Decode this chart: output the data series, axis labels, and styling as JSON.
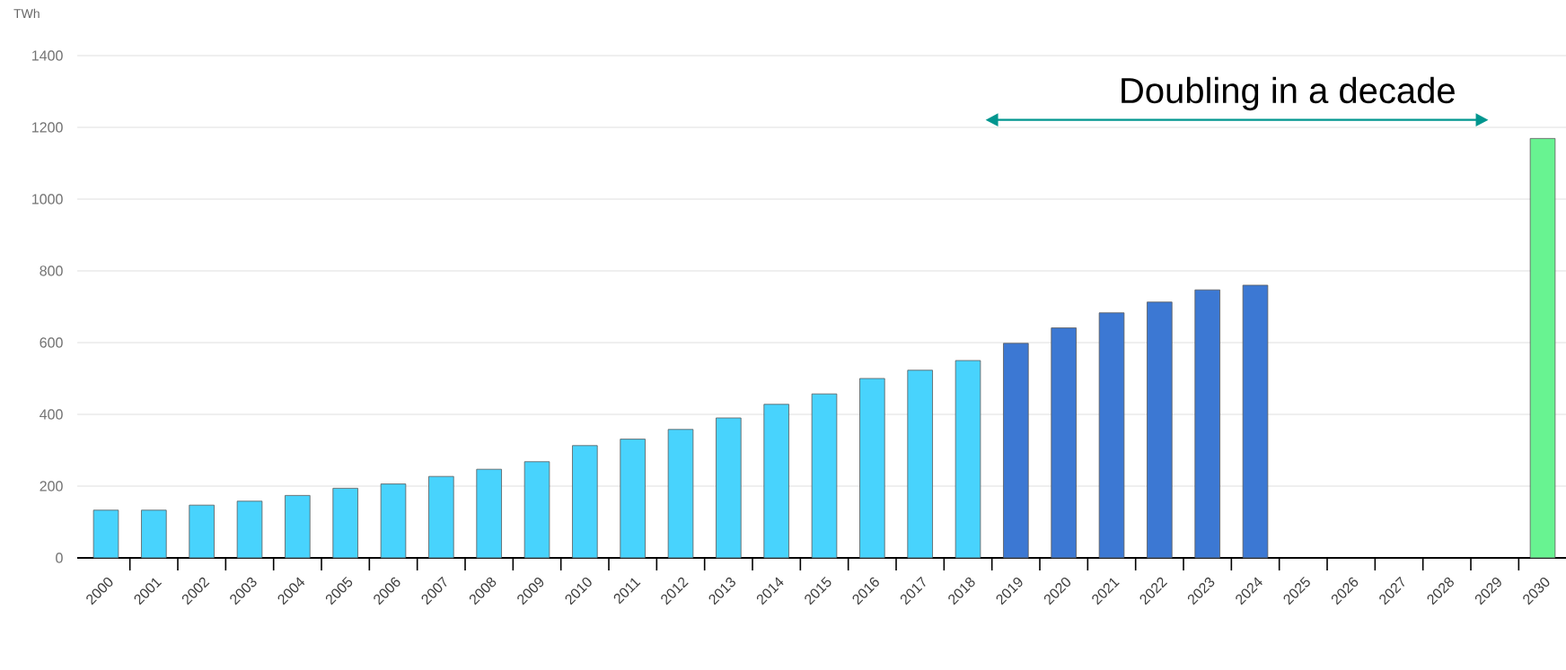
{
  "chart_data": {
    "type": "bar",
    "ylabel": "TWh",
    "categories": [
      "2000",
      "2001",
      "2002",
      "2003",
      "2004",
      "2005",
      "2006",
      "2007",
      "2008",
      "2009",
      "2010",
      "2011",
      "2012",
      "2013",
      "2014",
      "2015",
      "2016",
      "2017",
      "2018",
      "2019",
      "2020",
      "2021",
      "2022",
      "2023",
      "2024",
      "2025",
      "2026",
      "2027",
      "2028",
      "2029",
      "2030"
    ],
    "values": [
      133,
      133,
      147,
      158,
      174,
      194,
      206,
      227,
      247,
      268,
      313,
      331,
      358,
      390,
      428,
      457,
      500,
      523,
      550,
      598,
      641,
      683,
      713,
      747,
      760,
      null,
      null,
      null,
      null,
      null,
      1169
    ],
    "colors": [
      "#48d3fd",
      "#48d3fd",
      "#48d3fd",
      "#48d3fd",
      "#48d3fd",
      "#48d3fd",
      "#48d3fd",
      "#48d3fd",
      "#48d3fd",
      "#48d3fd",
      "#48d3fd",
      "#48d3fd",
      "#48d3fd",
      "#48d3fd",
      "#48d3fd",
      "#48d3fd",
      "#48d3fd",
      "#48d3fd",
      "#48d3fd",
      "#3c78d3",
      "#3c78d3",
      "#3c78d3",
      "#3c78d3",
      "#3c78d3",
      "#3c78d3",
      "#3c78d3",
      "#3c78d3",
      "#3c78d3",
      "#3c78d3",
      "#3c78d3",
      "#68f391"
    ],
    "ylim": [
      0,
      1400
    ],
    "yticks": [
      0,
      200,
      400,
      600,
      800,
      1000,
      1200,
      1400
    ],
    "grid": "y",
    "annotations": [
      "Doubling in a decade"
    ]
  }
}
